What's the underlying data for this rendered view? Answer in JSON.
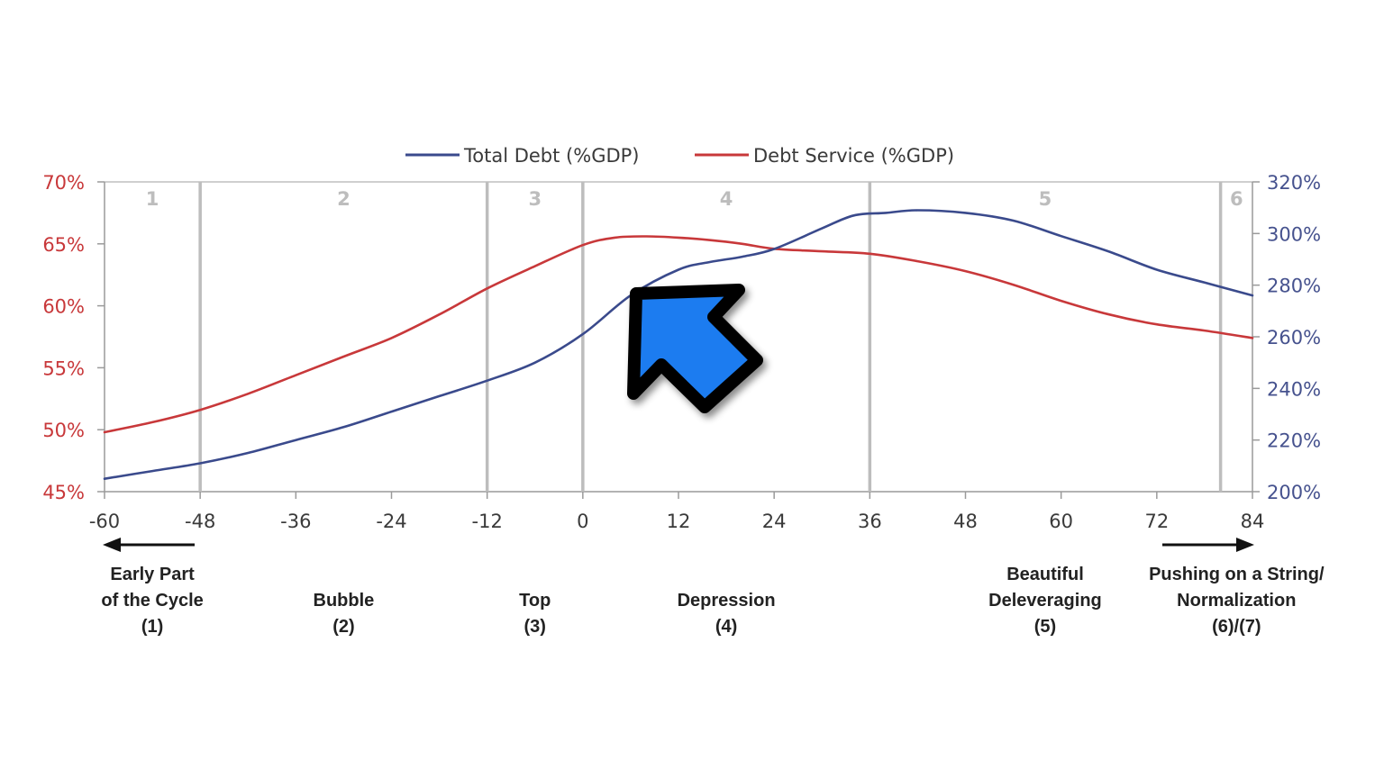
{
  "chart_data": {
    "type": "line",
    "x_ticks": [
      -60,
      -48,
      -36,
      -24,
      -12,
      0,
      12,
      24,
      36,
      48,
      60,
      72,
      84
    ],
    "xlim": [
      -60,
      84
    ],
    "y_left": {
      "ticks": [
        "45%",
        "50%",
        "55%",
        "60%",
        "65%",
        "70%"
      ],
      "range": [
        45,
        70
      ],
      "color": "#c8383a"
    },
    "y_right": {
      "ticks": [
        "200%",
        "220%",
        "240%",
        "260%",
        "280%",
        "300%",
        "320%"
      ],
      "range": [
        200,
        320
      ],
      "color": "#46528e"
    },
    "legend": {
      "position": "top-center"
    },
    "series": [
      {
        "name": "Total Debt (%GDP)",
        "axis": "right",
        "color": "#3a4a8c",
        "x": [
          -60,
          -54,
          -48,
          -42,
          -36,
          -30,
          -24,
          -18,
          -12,
          -6,
          0,
          6,
          12,
          16,
          20,
          24,
          30,
          34,
          38,
          42,
          48,
          54,
          60,
          66,
          72,
          78,
          84
        ],
        "y": [
          205,
          208,
          211,
          215,
          220,
          225,
          231,
          237,
          243,
          250,
          261,
          276,
          286,
          289,
          291,
          294,
          302,
          307,
          308,
          309,
          308,
          305,
          299,
          293,
          286,
          281,
          276
        ]
      },
      {
        "name": "Debt Service (%GDP)",
        "axis": "left",
        "color": "#c8383a",
        "x": [
          -60,
          -54,
          -48,
          -42,
          -36,
          -30,
          -24,
          -18,
          -12,
          -6,
          0,
          4,
          8,
          12,
          16,
          20,
          24,
          30,
          36,
          42,
          48,
          54,
          60,
          66,
          72,
          78,
          84
        ],
        "y": [
          49.8,
          50.6,
          51.6,
          52.9,
          54.4,
          55.9,
          57.4,
          59.3,
          61.4,
          63.2,
          64.9,
          65.5,
          65.6,
          65.5,
          65.3,
          65.0,
          64.6,
          64.4,
          64.2,
          63.6,
          62.8,
          61.7,
          60.4,
          59.3,
          58.5,
          58.0,
          57.4
        ]
      }
    ],
    "phases": [
      {
        "number": "1",
        "start": -60,
        "end": -48,
        "label": [
          "Early Part",
          "of the Cycle",
          "(1)"
        ]
      },
      {
        "number": "2",
        "start": -48,
        "end": -12,
        "label": [
          "Bubble",
          "(2)"
        ]
      },
      {
        "number": "3",
        "start": -12,
        "end": 0,
        "label": [
          "Top",
          "(3)"
        ]
      },
      {
        "number": "4",
        "start": 0,
        "end": 36,
        "label": [
          "Depression",
          "(4)"
        ]
      },
      {
        "number": "5",
        "start": 36,
        "end": 80,
        "label": [
          "Beautiful",
          "Deleveraging",
          "(5)"
        ]
      },
      {
        "number": "6",
        "start": 80,
        "end": 84,
        "label": [
          "Pushing on a String/",
          "Normalization",
          "(6)/(7)"
        ]
      }
    ],
    "arrows": [
      "left",
      "right"
    ],
    "cursor": {
      "icon": "mouse-pointer-arrow-icon",
      "color": "#1a7cf0"
    }
  }
}
